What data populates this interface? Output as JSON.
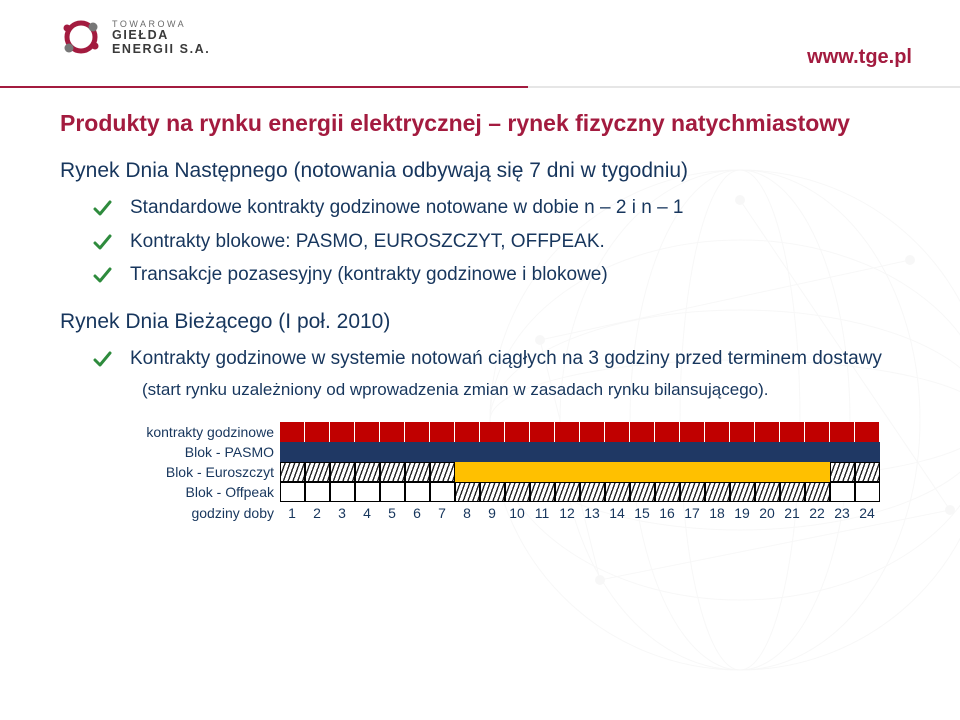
{
  "colors": {
    "accent": "#a31b3f",
    "tick_green": "#2e8b3d",
    "blue_text": "#17365d",
    "bar_red": "#c00000",
    "bar_navy": "#1f3864",
    "bar_gold": "#ffc000",
    "bar_hatch_bg": "#ffffff",
    "grey": "#6a6a6a"
  },
  "header": {
    "logo_line1": "TOWAROWA",
    "logo_line2": "GIEŁDA",
    "logo_line3": "ENERGII S.A.",
    "url": "www.tge.pl"
  },
  "title": "Produkty na rynku energii elektrycznej – rynek fizyczny  natychmiastowy",
  "section1": {
    "heading": "Rynek Dnia Następnego (notowania odbywają się 7 dni w tygodniu)",
    "bullets": [
      "Standardowe kontrakty godzinowe notowane w dobie n – 2 i n – 1",
      "Kontrakty blokowe: PASMO, EUROSZCZYT, OFFPEAK.",
      "Transakcje pozasesyjny (kontrakty godzinowe i blokowe)"
    ]
  },
  "section2": {
    "heading": "Rynek Dnia Bieżącego (I poł. 2010)",
    "bullet_main": "Kontrakty godzinowe w systemie notowań ciągłych na 3 godziny przed terminem dostawy",
    "note": "(start rynku uzależniony od wprowadzenia zmian w zasadach rynku bilansującego)."
  },
  "gantt": {
    "hours": [
      "1",
      "2",
      "3",
      "4",
      "5",
      "6",
      "7",
      "8",
      "9",
      "10",
      "11",
      "12",
      "13",
      "14",
      "15",
      "16",
      "17",
      "18",
      "19",
      "20",
      "21",
      "22",
      "23",
      "24"
    ],
    "axis_label": "godziny doby",
    "rows": [
      {
        "label": "kontrakty godzinowe",
        "type": "hourly",
        "cells": [
          {
            "fill": "#c00000"
          },
          {
            "fill": "#c00000"
          },
          {
            "fill": "#c00000"
          },
          {
            "fill": "#c00000"
          },
          {
            "fill": "#c00000"
          },
          {
            "fill": "#c00000"
          },
          {
            "fill": "#c00000"
          },
          {
            "fill": "#c00000"
          },
          {
            "fill": "#c00000"
          },
          {
            "fill": "#c00000"
          },
          {
            "fill": "#c00000"
          },
          {
            "fill": "#c00000"
          },
          {
            "fill": "#c00000"
          },
          {
            "fill": "#c00000"
          },
          {
            "fill": "#c00000"
          },
          {
            "fill": "#c00000"
          },
          {
            "fill": "#c00000"
          },
          {
            "fill": "#c00000"
          },
          {
            "fill": "#c00000"
          },
          {
            "fill": "#c00000"
          },
          {
            "fill": "#c00000"
          },
          {
            "fill": "#c00000"
          },
          {
            "fill": "#c00000"
          },
          {
            "fill": "#c00000"
          }
        ]
      },
      {
        "label": "Blok - PASMO",
        "type": "pasmo",
        "cells": [
          {
            "fill": "#1f3864"
          },
          {
            "fill": "#1f3864"
          },
          {
            "fill": "#1f3864"
          },
          {
            "fill": "#1f3864"
          },
          {
            "fill": "#1f3864"
          },
          {
            "fill": "#1f3864"
          },
          {
            "fill": "#1f3864"
          },
          {
            "fill": "#1f3864"
          },
          {
            "fill": "#1f3864"
          },
          {
            "fill": "#1f3864"
          },
          {
            "fill": "#1f3864"
          },
          {
            "fill": "#1f3864"
          },
          {
            "fill": "#1f3864"
          },
          {
            "fill": "#1f3864"
          },
          {
            "fill": "#1f3864"
          },
          {
            "fill": "#1f3864"
          },
          {
            "fill": "#1f3864"
          },
          {
            "fill": "#1f3864"
          },
          {
            "fill": "#1f3864"
          },
          {
            "fill": "#1f3864"
          },
          {
            "fill": "#1f3864"
          },
          {
            "fill": "#1f3864"
          },
          {
            "fill": "#1f3864"
          },
          {
            "fill": "#1f3864"
          }
        ]
      },
      {
        "label": "Blok - Euroszczyt",
        "type": "euro",
        "cells": [
          {
            "hatch": true
          },
          {
            "hatch": true
          },
          {
            "hatch": true
          },
          {
            "hatch": true
          },
          {
            "hatch": true
          },
          {
            "hatch": true
          },
          {
            "hatch": true
          },
          {
            "fill": "#ffc000"
          },
          {
            "fill": "#ffc000"
          },
          {
            "fill": "#ffc000"
          },
          {
            "fill": "#ffc000"
          },
          {
            "fill": "#ffc000"
          },
          {
            "fill": "#ffc000"
          },
          {
            "fill": "#ffc000"
          },
          {
            "fill": "#ffc000"
          },
          {
            "fill": "#ffc000"
          },
          {
            "fill": "#ffc000"
          },
          {
            "fill": "#ffc000"
          },
          {
            "fill": "#ffc000"
          },
          {
            "fill": "#ffc000"
          },
          {
            "fill": "#ffc000"
          },
          {
            "fill": "#ffc000"
          },
          {
            "hatch": true
          },
          {
            "hatch": true
          }
        ]
      },
      {
        "label": "Blok - Offpeak",
        "type": "off",
        "cells": [
          {
            "fill": "#ffffff",
            "border": true
          },
          {
            "fill": "#ffffff",
            "border": true
          },
          {
            "fill": "#ffffff",
            "border": true
          },
          {
            "fill": "#ffffff",
            "border": true
          },
          {
            "fill": "#ffffff",
            "border": true
          },
          {
            "fill": "#ffffff",
            "border": true
          },
          {
            "fill": "#ffffff",
            "border": true
          },
          {
            "hatch": true
          },
          {
            "hatch": true
          },
          {
            "hatch": true
          },
          {
            "hatch": true
          },
          {
            "hatch": true
          },
          {
            "hatch": true
          },
          {
            "hatch": true
          },
          {
            "hatch": true
          },
          {
            "hatch": true
          },
          {
            "hatch": true
          },
          {
            "hatch": true
          },
          {
            "hatch": true
          },
          {
            "hatch": true
          },
          {
            "hatch": true
          },
          {
            "hatch": true
          },
          {
            "fill": "#ffffff",
            "border": true
          },
          {
            "fill": "#ffffff",
            "border": true
          }
        ]
      }
    ]
  }
}
